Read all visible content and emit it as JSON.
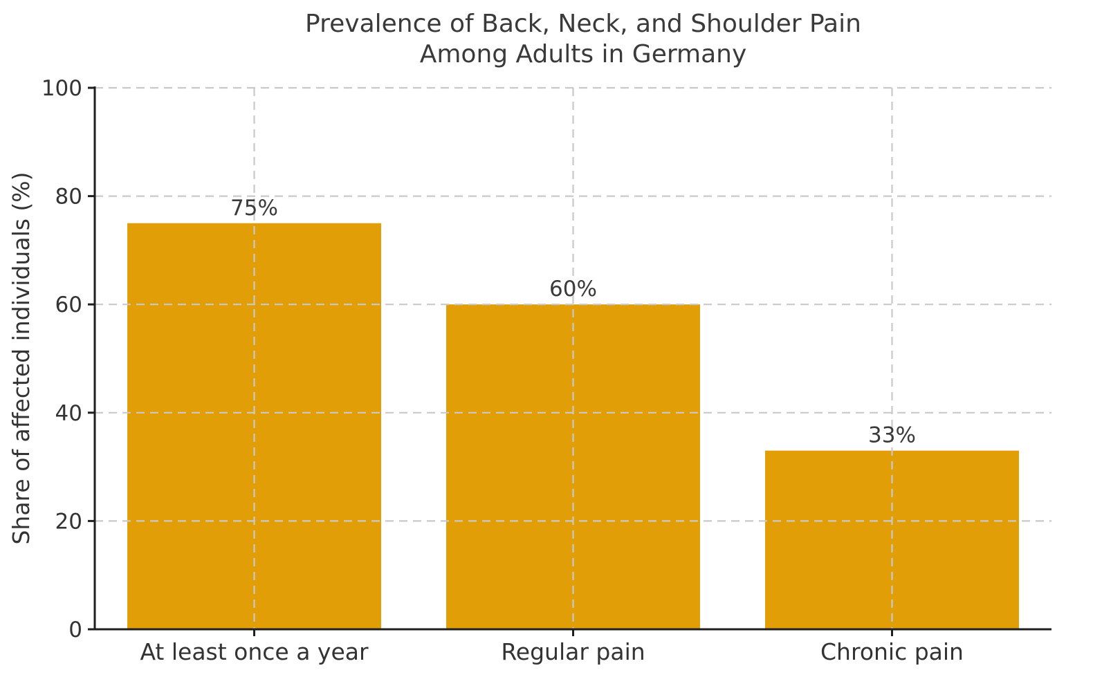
{
  "chart_data": {
    "type": "bar",
    "title_lines": [
      "Prevalence of Back, Neck, and Shoulder Pain",
      "Among Adults in Germany"
    ],
    "ylabel": "Share of affected individuals (%)",
    "xlabel": "",
    "categories": [
      "At least once a year",
      "Regular pain",
      "Chronic pain"
    ],
    "values": [
      75,
      60,
      33
    ],
    "value_labels": [
      "75%",
      "60%",
      "33%"
    ],
    "ylim": [
      0,
      100
    ],
    "yticks": [
      0,
      20,
      40,
      60,
      80,
      100
    ],
    "grid": "dashed, horizontal and vertical at bar centers, drawn above bars",
    "legend": "none",
    "bar_color": "#E19E07",
    "grid_color": "#c9c9c9",
    "spine_color": "#1f1f1f",
    "text_color": "#333333"
  }
}
